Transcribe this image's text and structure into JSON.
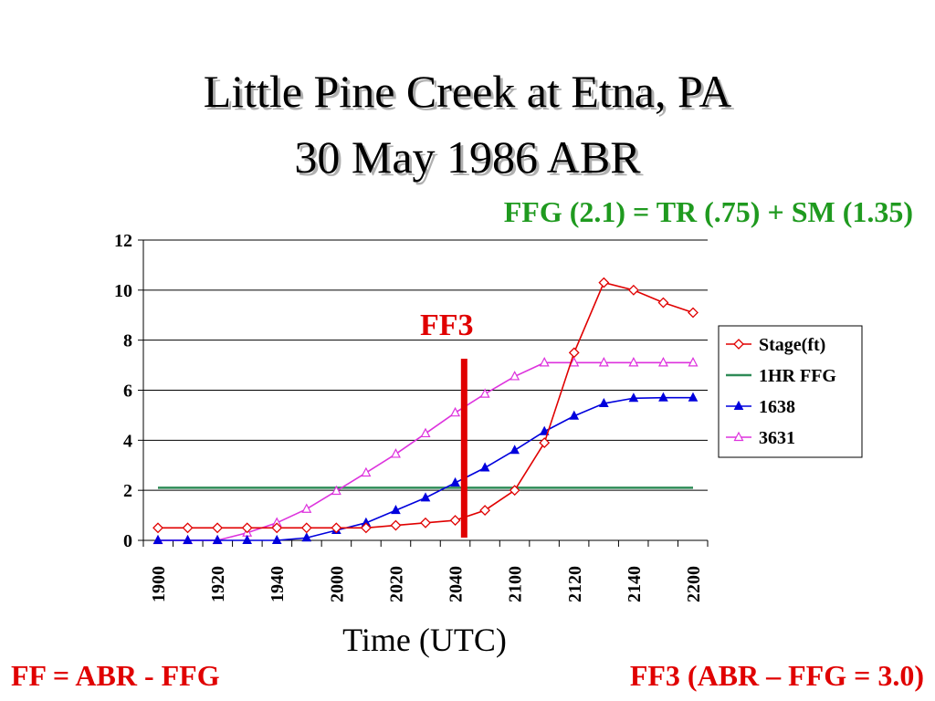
{
  "title_line1": "Little Pine Creek at Etna, PA",
  "title_line2": "30 May 1986 ABR",
  "subtitle": "FFG (2.1) = TR (.75) + SM (1.35)",
  "annotation": "FF3",
  "footer_left": "FF = ABR - FFG",
  "footer_right": "FF3 (ABR – FFG = 3.0)",
  "colors": {
    "stage": "#e00000",
    "ffg": "#2e8b57",
    "s1638": "#0000dd",
    "s3631": "#dd33dd",
    "marker_line": "#e00000"
  },
  "chart_data": {
    "type": "line",
    "xlabel": "Time (UTC)",
    "ylabel": "",
    "ylim": [
      0,
      12
    ],
    "yticks": [
      0,
      2,
      4,
      6,
      8,
      10,
      12
    ],
    "x": [
      "1900",
      "1910",
      "1920",
      "1930",
      "1940",
      "1950",
      "2000",
      "2010",
      "2020",
      "2030",
      "2040",
      "2050",
      "2100",
      "2110",
      "2120",
      "2130",
      "2140",
      "2150",
      "2200"
    ],
    "xtick_labels": [
      "1900",
      "1920",
      "1940",
      "2000",
      "2020",
      "2040",
      "2100",
      "2120",
      "2140",
      "2200"
    ],
    "grid": "horizontal",
    "legend": "right",
    "vline_at": "2043",
    "series": [
      {
        "name": "Stage(ft)",
        "marker": "diamond-open",
        "values": [
          0.5,
          0.5,
          0.5,
          0.5,
          0.5,
          0.5,
          0.5,
          0.5,
          0.6,
          0.7,
          0.8,
          1.2,
          2.0,
          3.9,
          7.5,
          10.3,
          10.0,
          9.5,
          9.1
        ]
      },
      {
        "name": "1HR FFG",
        "marker": "none",
        "values": [
          2.1,
          2.1,
          2.1,
          2.1,
          2.1,
          2.1,
          2.1,
          2.1,
          2.1,
          2.1,
          2.1,
          2.1,
          2.1,
          2.1,
          2.1,
          2.1,
          2.1,
          2.1,
          2.1
        ]
      },
      {
        "name": "1638",
        "marker": "triangle-filled",
        "values": [
          0,
          0,
          0,
          0,
          0,
          0.1,
          0.4,
          0.7,
          1.2,
          1.7,
          2.3,
          2.9,
          3.6,
          4.35,
          4.97,
          5.47,
          5.68,
          5.7,
          5.7
        ]
      },
      {
        "name": "3631",
        "marker": "triangle-open",
        "values": [
          0,
          0,
          0,
          0.3,
          0.7,
          1.25,
          1.97,
          2.7,
          3.45,
          4.27,
          5.1,
          5.85,
          6.55,
          7.1,
          7.1,
          7.1,
          7.1,
          7.1,
          7.1
        ]
      }
    ]
  }
}
